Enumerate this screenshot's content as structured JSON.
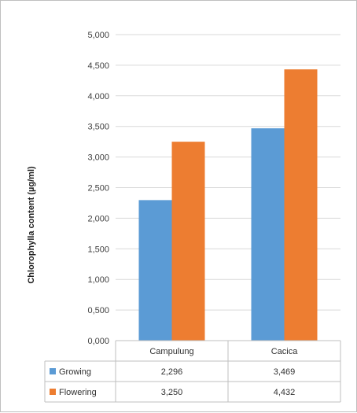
{
  "chart_data": {
    "type": "bar",
    "title": "",
    "xlabel": "",
    "ylabel": "Chlorophylla content (µg/ml)",
    "categories": [
      "Campulung",
      "Cacica"
    ],
    "series": [
      {
        "name": "Growing",
        "values": [
          2.296,
          3.469
        ],
        "labels": [
          "2,296",
          "3,469"
        ],
        "color": "#5b9bd5"
      },
      {
        "name": "Flowering",
        "values": [
          3.25,
          4.432
        ],
        "labels": [
          "3,250",
          "4,432"
        ],
        "color": "#ed7d31"
      }
    ],
    "ylim": [
      0,
      5
    ],
    "yticks": [
      0,
      0.5,
      1,
      1.5,
      2,
      2.5,
      3,
      3.5,
      4,
      4.5,
      5
    ],
    "ytick_labels": [
      "0,000",
      "0,500",
      "1,000",
      "1,500",
      "2,000",
      "2,500",
      "3,000",
      "3,500",
      "4,000",
      "4,500",
      "5,000"
    ],
    "grid": true,
    "legend": "data-table"
  }
}
